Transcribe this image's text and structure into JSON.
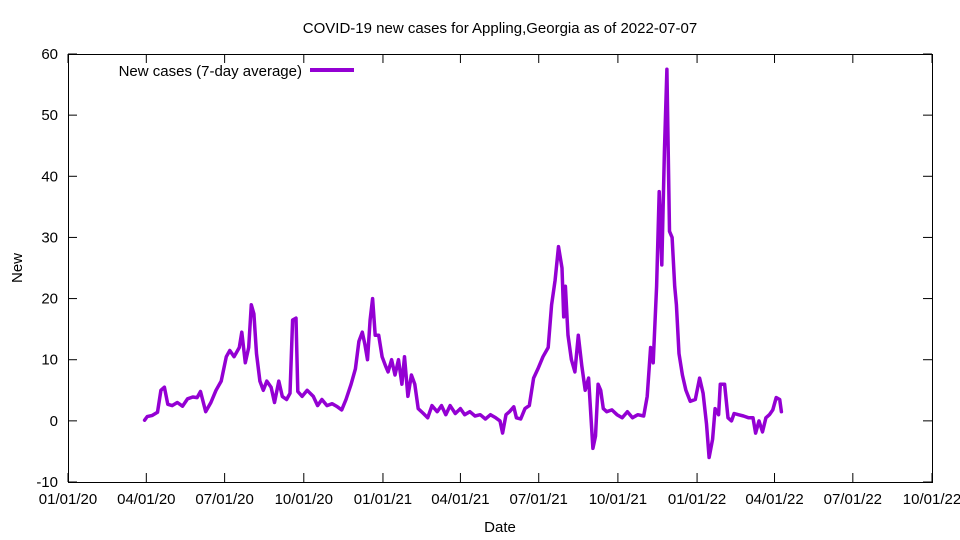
{
  "chart_data": {
    "type": "line",
    "title": "COVID-19 new cases for Appling,Georgia as of 2022-07-07",
    "xlabel": "Date",
    "ylabel": "New",
    "xlim": [
      "2020-01-01",
      "2022-10-01"
    ],
    "ylim": [
      -10,
      60
    ],
    "yticks": [
      -10,
      0,
      10,
      20,
      30,
      40,
      50,
      60
    ],
    "xticks": [
      {
        "date": "2020-01-01",
        "label": "01/01/20"
      },
      {
        "date": "2020-04-01",
        "label": "04/01/20"
      },
      {
        "date": "2020-07-01",
        "label": "07/01/20"
      },
      {
        "date": "2020-10-01",
        "label": "10/01/20"
      },
      {
        "date": "2021-01-01",
        "label": "01/01/21"
      },
      {
        "date": "2021-04-01",
        "label": "04/01/21"
      },
      {
        "date": "2021-07-01",
        "label": "07/01/21"
      },
      {
        "date": "2021-10-01",
        "label": "10/01/21"
      },
      {
        "date": "2022-01-01",
        "label": "01/01/22"
      },
      {
        "date": "2022-04-01",
        "label": "04/01/22"
      },
      {
        "date": "2022-07-01",
        "label": "07/01/22"
      },
      {
        "date": "2022-10-01",
        "label": "10/01/22"
      }
    ],
    "grid": false,
    "legend_position": "top-left",
    "series": [
      {
        "name": "New cases (7-day average)",
        "color": "#9400d3",
        "points": [
          [
            "2020-03-30",
            0.1
          ],
          [
            "2020-04-02",
            0.7
          ],
          [
            "2020-04-08",
            0.9
          ],
          [
            "2020-04-14",
            1.4
          ],
          [
            "2020-04-18",
            5.0
          ],
          [
            "2020-04-22",
            5.5
          ],
          [
            "2020-04-26",
            2.7
          ],
          [
            "2020-05-01",
            2.5
          ],
          [
            "2020-05-07",
            3.0
          ],
          [
            "2020-05-13",
            2.4
          ],
          [
            "2020-05-19",
            3.6
          ],
          [
            "2020-05-25",
            3.9
          ],
          [
            "2020-05-30",
            3.8
          ],
          [
            "2020-06-03",
            4.8
          ],
          [
            "2020-06-09",
            1.5
          ],
          [
            "2020-06-15",
            3.0
          ],
          [
            "2020-06-21",
            5.0
          ],
          [
            "2020-06-27",
            6.5
          ],
          [
            "2020-07-03",
            10.5
          ],
          [
            "2020-07-07",
            11.5
          ],
          [
            "2020-07-12",
            10.5
          ],
          [
            "2020-07-18",
            12.0
          ],
          [
            "2020-07-21",
            14.5
          ],
          [
            "2020-07-25",
            9.5
          ],
          [
            "2020-07-29",
            12.0
          ],
          [
            "2020-08-01",
            19.0
          ],
          [
            "2020-08-04",
            17.5
          ],
          [
            "2020-08-07",
            11.0
          ],
          [
            "2020-08-11",
            6.5
          ],
          [
            "2020-08-15",
            5.0
          ],
          [
            "2020-08-19",
            6.5
          ],
          [
            "2020-08-24",
            5.5
          ],
          [
            "2020-08-28",
            3.0
          ],
          [
            "2020-09-02",
            6.5
          ],
          [
            "2020-09-06",
            4.0
          ],
          [
            "2020-09-11",
            3.5
          ],
          [
            "2020-09-15",
            4.5
          ],
          [
            "2020-09-18",
            16.5
          ],
          [
            "2020-09-22",
            16.8
          ],
          [
            "2020-09-24",
            4.8
          ],
          [
            "2020-09-29",
            4.0
          ],
          [
            "2020-10-05",
            5.0
          ],
          [
            "2020-10-12",
            4.0
          ],
          [
            "2020-10-17",
            2.5
          ],
          [
            "2020-10-22",
            3.5
          ],
          [
            "2020-10-28",
            2.5
          ],
          [
            "2020-11-03",
            2.8
          ],
          [
            "2020-11-09",
            2.3
          ],
          [
            "2020-11-14",
            1.8
          ],
          [
            "2020-11-19",
            3.5
          ],
          [
            "2020-11-25",
            6.0
          ],
          [
            "2020-11-30",
            8.5
          ],
          [
            "2020-12-04",
            13.0
          ],
          [
            "2020-12-08",
            14.5
          ],
          [
            "2020-12-11",
            12.5
          ],
          [
            "2020-12-14",
            10.0
          ],
          [
            "2020-12-17",
            16.5
          ],
          [
            "2020-12-20",
            20.0
          ],
          [
            "2020-12-23",
            14.0
          ],
          [
            "2020-12-27",
            14.0
          ],
          [
            "2020-12-31",
            10.5
          ],
          [
            "2021-01-04",
            9.0
          ],
          [
            "2021-01-07",
            8.0
          ],
          [
            "2021-01-11",
            10.0
          ],
          [
            "2021-01-15",
            7.5
          ],
          [
            "2021-01-19",
            10.0
          ],
          [
            "2021-01-23",
            6.0
          ],
          [
            "2021-01-26",
            10.5
          ],
          [
            "2021-01-30",
            4.0
          ],
          [
            "2021-02-03",
            7.5
          ],
          [
            "2021-02-07",
            6.0
          ],
          [
            "2021-02-11",
            2.0
          ],
          [
            "2021-02-17",
            1.2
          ],
          [
            "2021-02-22",
            0.5
          ],
          [
            "2021-02-27",
            2.5
          ],
          [
            "2021-03-05",
            1.5
          ],
          [
            "2021-03-10",
            2.5
          ],
          [
            "2021-03-15",
            1.0
          ],
          [
            "2021-03-20",
            2.5
          ],
          [
            "2021-03-26",
            1.2
          ],
          [
            "2021-04-01",
            2.0
          ],
          [
            "2021-04-06",
            1.0
          ],
          [
            "2021-04-12",
            1.5
          ],
          [
            "2021-04-18",
            0.8
          ],
          [
            "2021-04-24",
            1.0
          ],
          [
            "2021-04-30",
            0.3
          ],
          [
            "2021-05-06",
            1.0
          ],
          [
            "2021-05-12",
            0.5
          ],
          [
            "2021-05-17",
            0.0
          ],
          [
            "2021-05-20",
            -2.0
          ],
          [
            "2021-05-24",
            1.0
          ],
          [
            "2021-05-28",
            1.5
          ],
          [
            "2021-06-02",
            2.3
          ],
          [
            "2021-06-05",
            0.5
          ],
          [
            "2021-06-10",
            0.3
          ],
          [
            "2021-06-15",
            2.0
          ],
          [
            "2021-06-20",
            2.5
          ],
          [
            "2021-06-25",
            7.0
          ],
          [
            "2021-06-30",
            8.5
          ],
          [
            "2021-07-06",
            10.5
          ],
          [
            "2021-07-12",
            12.0
          ],
          [
            "2021-07-16",
            19.0
          ],
          [
            "2021-07-20",
            23.0
          ],
          [
            "2021-07-24",
            28.5
          ],
          [
            "2021-07-28",
            25.0
          ],
          [
            "2021-07-30",
            17.0
          ],
          [
            "2021-08-01",
            22.0
          ],
          [
            "2021-08-04",
            14.0
          ],
          [
            "2021-08-08",
            10.0
          ],
          [
            "2021-08-12",
            8.0
          ],
          [
            "2021-08-16",
            14.0
          ],
          [
            "2021-08-20",
            9.0
          ],
          [
            "2021-08-24",
            5.0
          ],
          [
            "2021-08-28",
            7.0
          ],
          [
            "2021-08-31",
            0.0
          ],
          [
            "2021-09-02",
            -4.5
          ],
          [
            "2021-09-05",
            -2.5
          ],
          [
            "2021-09-08",
            6.0
          ],
          [
            "2021-09-11",
            5.0
          ],
          [
            "2021-09-14",
            2.0
          ],
          [
            "2021-09-18",
            1.5
          ],
          [
            "2021-09-24",
            1.8
          ],
          [
            "2021-09-30",
            1.0
          ],
          [
            "2021-10-06",
            0.5
          ],
          [
            "2021-10-12",
            1.5
          ],
          [
            "2021-10-18",
            0.5
          ],
          [
            "2021-10-24",
            1.0
          ],
          [
            "2021-10-31",
            0.8
          ],
          [
            "2021-11-04",
            4.0
          ],
          [
            "2021-11-08",
            12.0
          ],
          [
            "2021-11-11",
            9.5
          ],
          [
            "2021-11-15",
            22.0
          ],
          [
            "2021-11-18",
            37.5
          ],
          [
            "2021-11-21",
            25.5
          ],
          [
            "2021-11-24",
            44.0
          ],
          [
            "2021-11-27",
            57.5
          ],
          [
            "2021-11-30",
            31.0
          ],
          [
            "2021-12-03",
            30.0
          ],
          [
            "2021-12-06",
            22.0
          ],
          [
            "2021-12-08",
            19.0
          ],
          [
            "2021-12-11",
            11.0
          ],
          [
            "2021-12-15",
            7.5
          ],
          [
            "2021-12-19",
            5.0
          ],
          [
            "2021-12-24",
            3.2
          ],
          [
            "2021-12-30",
            3.5
          ],
          [
            "2022-01-04",
            7.0
          ],
          [
            "2022-01-08",
            4.5
          ],
          [
            "2022-01-12",
            -0.5
          ],
          [
            "2022-01-15",
            -6.0
          ],
          [
            "2022-01-19",
            -3.0
          ],
          [
            "2022-01-22",
            2.0
          ],
          [
            "2022-01-26",
            1.0
          ],
          [
            "2022-01-28",
            6.0
          ],
          [
            "2022-02-02",
            6.0
          ],
          [
            "2022-02-06",
            0.5
          ],
          [
            "2022-02-10",
            0.0
          ],
          [
            "2022-02-13",
            1.2
          ],
          [
            "2022-02-18",
            1.0
          ],
          [
            "2022-02-24",
            0.8
          ],
          [
            "2022-03-02",
            0.5
          ],
          [
            "2022-03-07",
            0.5
          ],
          [
            "2022-03-10",
            -2.0
          ],
          [
            "2022-03-14",
            0.0
          ],
          [
            "2022-03-18",
            -1.8
          ],
          [
            "2022-03-22",
            0.5
          ],
          [
            "2022-03-26",
            1.0
          ],
          [
            "2022-03-30",
            1.8
          ],
          [
            "2022-04-03",
            3.8
          ],
          [
            "2022-04-07",
            3.5
          ],
          [
            "2022-04-09",
            1.5
          ]
        ]
      }
    ]
  }
}
